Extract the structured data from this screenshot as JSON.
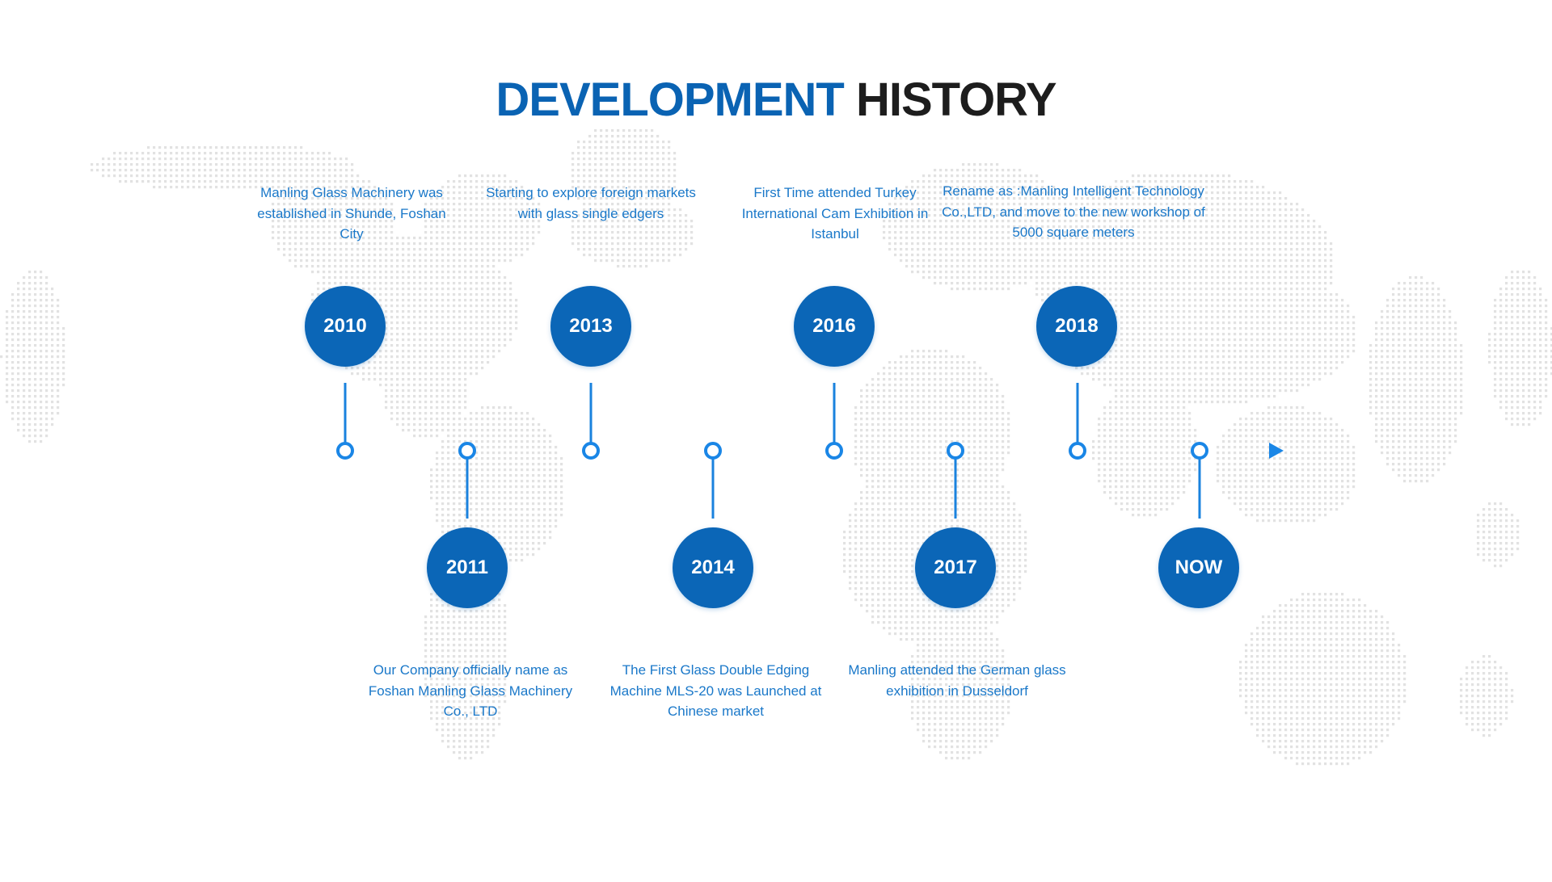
{
  "title": {
    "accent": "DEVELOPMENT",
    "main": "HISTORY"
  },
  "colors": {
    "accent": "#0a63b3",
    "circle": "#0b66b7",
    "timeline": "#1e96f0",
    "description_text": "#1a78c9",
    "map_dots": "#e2e2e2"
  },
  "timeline": {
    "milestones": [
      {
        "year": "2010",
        "description": "Manling Glass Machinery was established in Shunde, Foshan City"
      },
      {
        "year": "2011",
        "description": "Our Company officially name as Foshan Manling Glass Machinery Co., LTD"
      },
      {
        "year": "2013",
        "description": "Starting to explore foreign markets with glass single edgers"
      },
      {
        "year": "2014",
        "description": "The First Glass Double Edging Machine MLS-20 was Launched at Chinese market"
      },
      {
        "year": "2016",
        "description": "First Time attended Turkey International Cam Exhibition in Istanbul"
      },
      {
        "year": "2017",
        "description": "Manling attended the German glass exhibition in Dusseldorf"
      },
      {
        "year": "2018",
        "description": "Rename as :Manling Intelligent Technology Co.,LTD, and move to the new workshop of 5000 square meters"
      },
      {
        "year": "NOW",
        "description": ""
      }
    ]
  }
}
